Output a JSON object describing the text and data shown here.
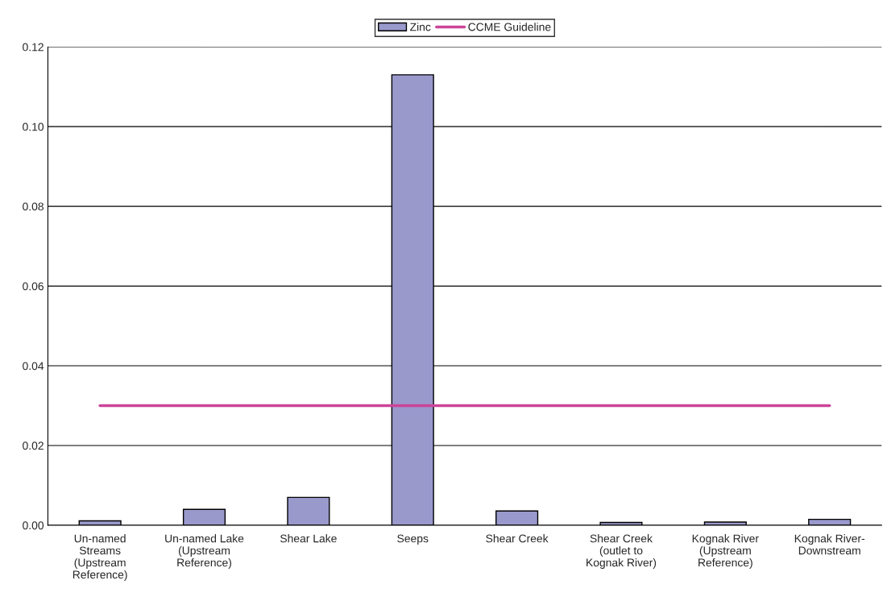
{
  "chart_data": {
    "type": "bar",
    "categories": [
      "Un-named Streams (Upstream Reference)",
      "Un-named Lake (Upstream Reference)",
      "Shear Lake",
      "Seeps",
      "Shear Creek",
      "Shear Creek (outlet to Kognak River)",
      "Kognak River (Upstream Reference)",
      "Kognak River-Downstream"
    ],
    "series": [
      {
        "name": "Zinc",
        "color": "#9999cc",
        "values": [
          0.0011,
          0.004,
          0.007,
          0.113,
          0.0036,
          0.0007,
          0.0008,
          0.0015
        ]
      },
      {
        "name": "CCME Guideline",
        "type": "line",
        "color": "#cc4499",
        "values": [
          0.03,
          0.03,
          0.03,
          0.03,
          0.03,
          0.03,
          0.03,
          0.03
        ]
      }
    ],
    "ylim": [
      0,
      0.12
    ],
    "yticks": [
      {
        "value": 0,
        "label": "0.00"
      },
      {
        "value": 0.02,
        "label": "0.02"
      },
      {
        "value": 0.04,
        "label": "0.04"
      },
      {
        "value": 0.06,
        "label": "0.06"
      },
      {
        "value": 0.08,
        "label": "0.08"
      },
      {
        "value": 0.1,
        "label": "0.10"
      },
      {
        "value": 0.12,
        "label": "0.12"
      }
    ],
    "grid": "y",
    "legend": "top"
  }
}
